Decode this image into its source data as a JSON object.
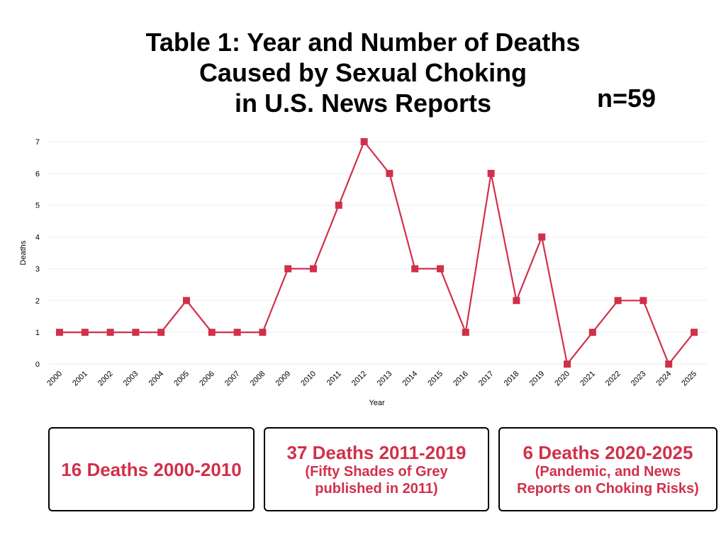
{
  "title_lines": [
    "Table 1: Year and Number of Deaths",
    "Caused by Sexual Choking",
    "in U.S. News Reports"
  ],
  "sample_size": "n=59",
  "chart_data": {
    "type": "line",
    "title": "Table 1: Year and Number of Deaths Caused by Sexual Choking in U.S. News Reports",
    "xlabel": "Year",
    "ylabel": "Deaths",
    "categories": [
      "2000",
      "2001",
      "2002",
      "2003",
      "2004",
      "2005",
      "2006",
      "2007",
      "2008",
      "2009",
      "2010",
      "2011",
      "2012",
      "2013",
      "2014",
      "2015",
      "2016",
      "2017",
      "2018",
      "2019",
      "2020",
      "2021",
      "2022",
      "2023",
      "2024",
      "2025"
    ],
    "series": [
      {
        "name": "Deaths",
        "values": [
          1,
          1,
          1,
          1,
          1,
          2,
          1,
          1,
          1,
          3,
          3,
          5,
          7,
          6,
          3,
          3,
          1,
          6,
          2,
          4,
          0,
          1,
          2,
          2,
          0,
          1
        ],
        "color": "#d1304a",
        "marker": "square"
      }
    ],
    "yticks": [
      0,
      1,
      2,
      3,
      4,
      5,
      6,
      7
    ],
    "ylim": [
      0,
      7
    ],
    "grid": true,
    "legend": "none"
  },
  "summary_boxes": [
    {
      "head": "16 Deaths 2000-2010",
      "sub": []
    },
    {
      "head": "37 Deaths 2011-2019",
      "sub": [
        "(Fifty Shades of Grey",
        "published in 2011)"
      ]
    },
    {
      "head": "6 Deaths 2020-2025",
      "sub": [
        "(Pandemic, and News",
        "Reports on Choking Risks)"
      ]
    }
  ],
  "colors": {
    "accent": "#d1304a",
    "grid": "#eeeeee",
    "text": "#000000"
  }
}
